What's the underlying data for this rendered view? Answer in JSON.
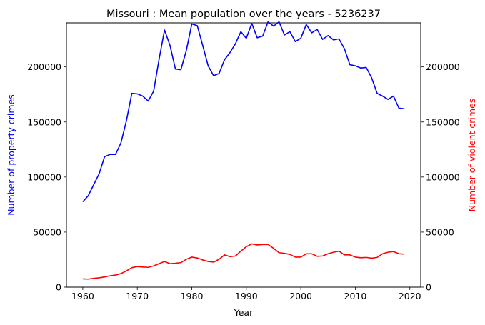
{
  "chart_data": {
    "type": "line",
    "title": "Missouri : Mean population over the years - 5236237",
    "xlabel": "Year",
    "ylabel_left": "Number of property crimes",
    "ylabel_right": "Number of violent crimes",
    "xlim": [
      1957,
      2022
    ],
    "ylim": [
      0,
      240000
    ],
    "x_ticks": [
      1960,
      1970,
      1980,
      1990,
      2000,
      2010,
      2020
    ],
    "y_ticks": [
      0,
      50000,
      100000,
      150000,
      200000
    ],
    "x": [
      1960,
      1961,
      1962,
      1963,
      1964,
      1965,
      1966,
      1967,
      1968,
      1969,
      1970,
      1971,
      1972,
      1973,
      1974,
      1975,
      1976,
      1977,
      1978,
      1979,
      1980,
      1981,
      1982,
      1983,
      1984,
      1985,
      1986,
      1987,
      1988,
      1989,
      1990,
      1991,
      1992,
      1993,
      1994,
      1995,
      1996,
      1997,
      1998,
      1999,
      2000,
      2001,
      2002,
      2003,
      2004,
      2005,
      2006,
      2007,
      2008,
      2009,
      2010,
      2011,
      2012,
      2013,
      2014,
      2015,
      2016,
      2017,
      2018,
      2019
    ],
    "series": [
      {
        "name": "Number of property crimes",
        "axis": "left",
        "color": "#0000ff",
        "values": [
          77500,
          83000,
          93000,
          103000,
          118500,
          120500,
          120500,
          131000,
          151000,
          176000,
          175500,
          173500,
          169000,
          178000,
          207000,
          233500,
          219500,
          198000,
          197500,
          215000,
          239000,
          237500,
          219500,
          201000,
          192000,
          194000,
          206500,
          213000,
          221000,
          232000,
          226000,
          239500,
          226500,
          228000,
          241000,
          237000,
          241000,
          229000,
          232000,
          223000,
          226000,
          238500,
          231000,
          234000,
          225000,
          228500,
          224500,
          225500,
          216500,
          202000,
          201000,
          199000,
          199500,
          190000,
          176000,
          173500,
          170500,
          173500,
          162500,
          162000
        ]
      },
      {
        "name": "Number of violent crimes",
        "axis": "right",
        "color": "#ff0000",
        "values": [
          7500,
          7300,
          8000,
          8500,
          9300,
          10300,
          11000,
          12300,
          14700,
          17700,
          18700,
          18300,
          18000,
          19300,
          21300,
          23300,
          21300,
          21700,
          22300,
          25300,
          27300,
          26500,
          24700,
          23300,
          22700,
          25300,
          29300,
          27700,
          28300,
          32700,
          36700,
          39300,
          38300,
          38700,
          38700,
          35300,
          31300,
          30700,
          29700,
          27300,
          27300,
          30300,
          30300,
          28000,
          28300,
          30300,
          31700,
          32700,
          29300,
          29300,
          27300,
          26700,
          27000,
          26300,
          27000,
          30300,
          31700,
          32300,
          30300,
          30000
        ]
      }
    ]
  }
}
